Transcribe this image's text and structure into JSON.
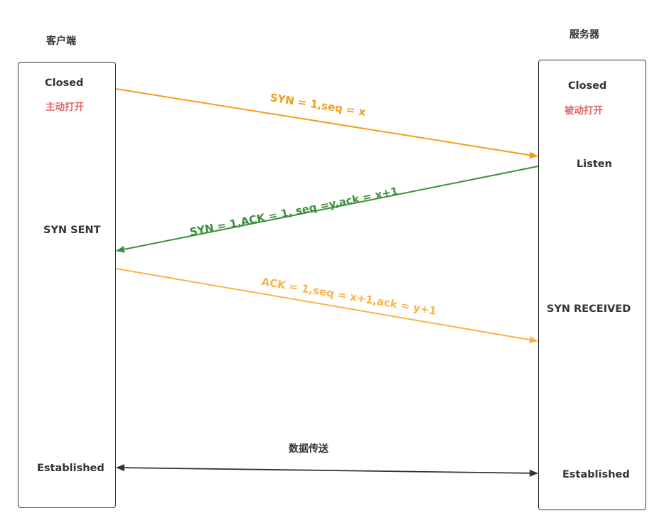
{
  "client": {
    "title": "客户端",
    "states": {
      "closed": "Closed",
      "active_open": "主动打开",
      "syn_sent": "SYN SENT",
      "established": "Established"
    }
  },
  "server": {
    "title": "服务器",
    "states": {
      "closed": "Closed",
      "passive_open": "被动打开",
      "listen": "Listen",
      "syn_received": "SYN RECEIVED",
      "established": "Established"
    }
  },
  "messages": {
    "syn": {
      "label": "SYN = 1,seq = x",
      "color": "#f59c1a"
    },
    "syn_ack": {
      "label": "SYN = 1,ACK = 1, seq =y,ack = x+1",
      "color": "#3c8f3c"
    },
    "ack": {
      "label": "ACK = 1,seq = x+1,ack = y+1",
      "color": "#f9b446"
    },
    "data": {
      "label": "数据传送",
      "color": "#333333"
    }
  },
  "colors": {
    "note_red": "#e06666",
    "border": "#333333"
  }
}
